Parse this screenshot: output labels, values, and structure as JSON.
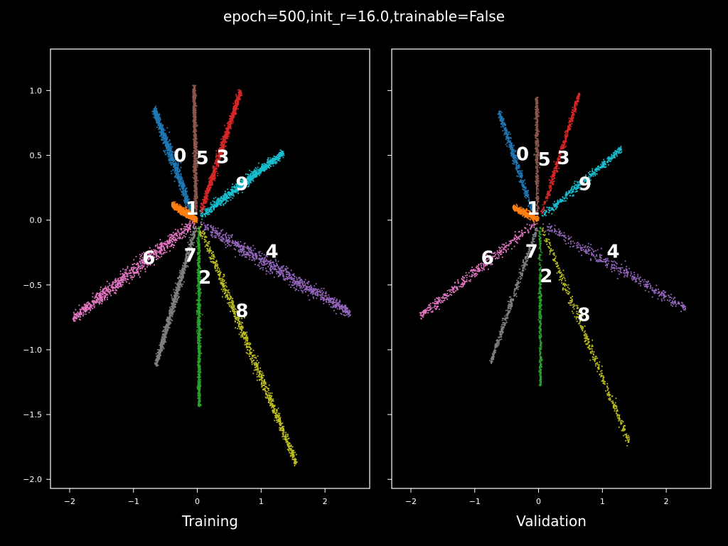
{
  "figure": {
    "suptitle": "epoch=500,init_r=16.0,trainable=False",
    "background": "#000000",
    "foreground": "#ffffff"
  },
  "chart_data": [
    {
      "type": "scatter",
      "xlabel": "Training",
      "ylabel": "",
      "xlim": [
        -2.3,
        2.7
      ],
      "ylim": [
        -2.07,
        1.32
      ],
      "xticks": [
        -2,
        -1,
        0,
        1,
        2
      ],
      "xtick_labels": [
        "−2",
        "−1",
        "0",
        "1",
        "2"
      ],
      "yticks": [
        1.0,
        0.5,
        0.0,
        -0.5,
        -1.0,
        -1.5,
        -2.0
      ],
      "ytick_labels": [
        "1.0",
        "0.5",
        "0.0",
        "−0.5",
        "−1.0",
        "−1.5",
        "−2.0"
      ],
      "grid": false,
      "series": [
        {
          "label": "0",
          "color": "#1f77b4",
          "start": [
            -0.1,
            0.07
          ],
          "end": [
            -0.68,
            0.86
          ],
          "width": 0.05,
          "label_pos": [
            -0.27,
            0.5
          ]
        },
        {
          "label": "1",
          "color": "#ff7f0e",
          "start": [
            0.0,
            0.0
          ],
          "end": [
            -0.4,
            0.12
          ],
          "width": 0.03,
          "label_pos": [
            -0.08,
            0.09
          ]
        },
        {
          "label": "2",
          "color": "#2ca02c",
          "start": [
            0.02,
            -0.05
          ],
          "end": [
            0.03,
            -1.44
          ],
          "width": 0.03,
          "label_pos": [
            0.12,
            -0.44
          ]
        },
        {
          "label": "3",
          "color": "#d62728",
          "start": [
            0.05,
            0.05
          ],
          "end": [
            0.68,
            1.0
          ],
          "width": 0.04,
          "label_pos": [
            0.4,
            0.49
          ]
        },
        {
          "label": "4",
          "color": "#9467bd",
          "start": [
            0.05,
            -0.03
          ],
          "end": [
            2.4,
            -0.72
          ],
          "width": 0.06,
          "label_pos": [
            1.17,
            -0.24
          ]
        },
        {
          "label": "5",
          "color": "#8c564b",
          "start": [
            -0.02,
            0.06
          ],
          "end": [
            -0.05,
            1.04
          ],
          "width": 0.03,
          "label_pos": [
            0.08,
            0.48
          ]
        },
        {
          "label": "6",
          "color": "#e377c2",
          "start": [
            -0.05,
            -0.02
          ],
          "end": [
            -1.95,
            -0.76
          ],
          "width": 0.06,
          "label_pos": [
            -0.76,
            -0.29
          ]
        },
        {
          "label": "7",
          "color": "#7f7f7f",
          "start": [
            -0.02,
            -0.05
          ],
          "end": [
            -0.65,
            -1.12
          ],
          "width": 0.04,
          "label_pos": [
            -0.11,
            -0.27
          ]
        },
        {
          "label": "8",
          "color": "#bcbd22",
          "start": [
            0.04,
            -0.05
          ],
          "end": [
            1.55,
            -1.88
          ],
          "width": 0.05,
          "label_pos": [
            0.7,
            -0.7
          ]
        },
        {
          "label": "9",
          "color": "#17becf",
          "start": [
            0.05,
            0.03
          ],
          "end": [
            1.35,
            0.52
          ],
          "width": 0.04,
          "label_pos": [
            0.7,
            0.28
          ]
        }
      ]
    },
    {
      "type": "scatter",
      "xlabel": "Validation",
      "ylabel": "",
      "xlim": [
        -2.3,
        2.7
      ],
      "ylim": [
        -2.07,
        1.32
      ],
      "xticks": [
        -2,
        -1,
        0,
        1,
        2
      ],
      "xtick_labels": [
        "−2",
        "−1",
        "0",
        "1",
        "2"
      ],
      "yticks": [
        1.0,
        0.5,
        0.0,
        -0.5,
        -1.0,
        -1.5,
        -2.0
      ],
      "ytick_labels": [
        "",
        "",
        "",
        "",
        "",
        "",
        ""
      ],
      "grid": false,
      "series": [
        {
          "label": "0",
          "color": "#1f77b4",
          "start": [
            -0.1,
            0.07
          ],
          "end": [
            -0.62,
            0.84
          ],
          "width": 0.04,
          "label_pos": [
            -0.25,
            0.51
          ]
        },
        {
          "label": "1",
          "color": "#ff7f0e",
          "start": [
            0.0,
            0.0
          ],
          "end": [
            -0.4,
            0.1
          ],
          "width": 0.03,
          "label_pos": [
            -0.08,
            0.09
          ]
        },
        {
          "label": "2",
          "color": "#2ca02c",
          "start": [
            0.02,
            -0.05
          ],
          "end": [
            0.03,
            -1.28
          ],
          "width": 0.025,
          "label_pos": [
            0.12,
            -0.43
          ]
        },
        {
          "label": "3",
          "color": "#d62728",
          "start": [
            0.05,
            0.05
          ],
          "end": [
            0.64,
            0.98
          ],
          "width": 0.035,
          "label_pos": [
            0.39,
            0.48
          ]
        },
        {
          "label": "4",
          "color": "#9467bd",
          "start": [
            0.05,
            -0.03
          ],
          "end": [
            2.3,
            -0.68
          ],
          "width": 0.05,
          "label_pos": [
            1.17,
            -0.24
          ]
        },
        {
          "label": "5",
          "color": "#8c564b",
          "start": [
            -0.02,
            0.06
          ],
          "end": [
            -0.03,
            0.95
          ],
          "width": 0.03,
          "label_pos": [
            0.09,
            0.47
          ]
        },
        {
          "label": "6",
          "color": "#e377c2",
          "start": [
            -0.05,
            -0.02
          ],
          "end": [
            -1.85,
            -0.74
          ],
          "width": 0.05,
          "label_pos": [
            -0.8,
            -0.29
          ]
        },
        {
          "label": "7",
          "color": "#7f7f7f",
          "start": [
            -0.02,
            -0.05
          ],
          "end": [
            -0.75,
            -1.1
          ],
          "width": 0.035,
          "label_pos": [
            -0.11,
            -0.24
          ]
        },
        {
          "label": "8",
          "color": "#bcbd22",
          "start": [
            0.04,
            -0.05
          ],
          "end": [
            1.42,
            -1.72
          ],
          "width": 0.045,
          "label_pos": [
            0.71,
            -0.73
          ]
        },
        {
          "label": "9",
          "color": "#17becf",
          "start": [
            0.05,
            0.03
          ],
          "end": [
            1.3,
            0.55
          ],
          "width": 0.035,
          "label_pos": [
            0.73,
            0.28
          ]
        }
      ]
    }
  ]
}
